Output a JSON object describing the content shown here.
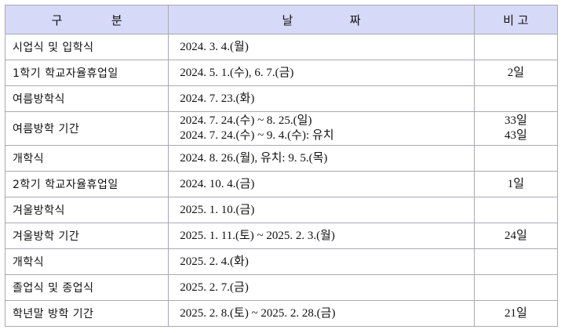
{
  "header": {
    "category": [
      "구",
      "분"
    ],
    "date": [
      "날",
      "짜"
    ],
    "note": "비 고"
  },
  "rows": [
    {
      "category": "시업식 및 입학식",
      "dates": [
        "2024. 3. 4.(월)"
      ],
      "notes": [
        ""
      ]
    },
    {
      "category": "1학기 학교자율휴업일",
      "dates": [
        "2024. 5. 1.(수), 6. 7.(금)"
      ],
      "notes": [
        "2일"
      ]
    },
    {
      "category": "여름방학식",
      "dates": [
        "2024. 7. 23.(화)"
      ],
      "notes": [
        ""
      ]
    },
    {
      "category": "여름방학 기간",
      "dates": [
        "2024. 7. 24.(수) ~ 8. 25.(일)",
        "2024. 7. 24.(수) ~ 9. 4.(수): 유치"
      ],
      "notes": [
        "33일",
        "43일"
      ]
    },
    {
      "category": "개학식",
      "dates": [
        "2024. 8. 26.(월), 유치: 9. 5.(목)"
      ],
      "notes": [
        ""
      ]
    },
    {
      "category": "2학기 학교자율휴업일",
      "dates": [
        "2024. 10. 4.(금)"
      ],
      "notes": [
        "1일"
      ]
    },
    {
      "category": "겨울방학식",
      "dates": [
        "2025. 1. 10.(금)"
      ],
      "notes": [
        ""
      ]
    },
    {
      "category": "겨울방학 기간",
      "dates": [
        "2025. 1. 11.(토) ~ 2025. 2. 3.(월)"
      ],
      "notes": [
        "24일"
      ]
    },
    {
      "category": "개학식",
      "dates": [
        "2025. 2. 4.(화)"
      ],
      "notes": [
        ""
      ]
    },
    {
      "category": "졸업식 및 종업식",
      "dates": [
        "2025. 2. 7.(금)"
      ],
      "notes": [
        ""
      ]
    },
    {
      "category": "학년말 방학 기간",
      "dates": [
        "2025. 2. 8.(토) ~ 2025. 2. 28.(금)"
      ],
      "notes": [
        "21일"
      ]
    }
  ]
}
